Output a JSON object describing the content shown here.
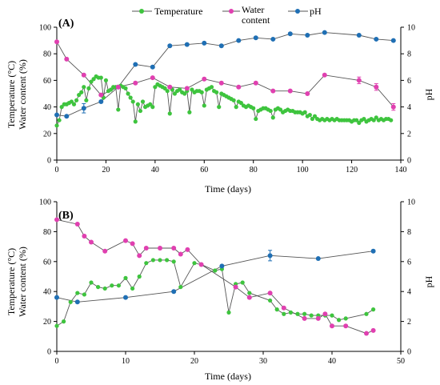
{
  "legend": {
    "temperature": "Temperature",
    "water_line1": "Water",
    "water_line2": "content",
    "ph": "pH"
  },
  "colors": {
    "temperature": "#3ec43e",
    "water": "#e040b0",
    "ph": "#1f6fb4",
    "connector": "#555555"
  },
  "chart_data": [
    {
      "type": "line",
      "panel_label": "(A)",
      "xlabel": "Time (days)",
      "ylabel_line1": "Temperature (°C)",
      "ylabel_line2": "Water content (%)",
      "y2label": "pH",
      "xlim": [
        0,
        140
      ],
      "ylim": [
        0,
        100
      ],
      "y2lim": [
        0,
        10
      ],
      "x_ticks": [
        "0",
        "20",
        "40",
        "60",
        "80",
        "100",
        "120",
        "140"
      ],
      "y_ticks": [
        "0",
        "20",
        "40",
        "60",
        "80",
        "100"
      ],
      "y2_ticks": [
        "0",
        "2",
        "4",
        "6",
        "8",
        "10"
      ],
      "series": [
        {
          "name": "Temperature",
          "axis": "left",
          "marker": "circle",
          "x": [
            0,
            1,
            2,
            3,
            4,
            5,
            6,
            7,
            8,
            9,
            10,
            11,
            12,
            13,
            14,
            15,
            16,
            17,
            18,
            19,
            20,
            21,
            22,
            23,
            24,
            25,
            26,
            27,
            28,
            29,
            30,
            31,
            32,
            33,
            34,
            35,
            36,
            37,
            38,
            39,
            40,
            41,
            42,
            43,
            44,
            45,
            46,
            47,
            48,
            49,
            50,
            51,
            52,
            53,
            54,
            55,
            56,
            57,
            58,
            59,
            60,
            61,
            62,
            63,
            64,
            65,
            66,
            67,
            68,
            69,
            70,
            71,
            72,
            73,
            74,
            75,
            76,
            77,
            78,
            79,
            80,
            81,
            82,
            83,
            84,
            85,
            86,
            87,
            88,
            89,
            90,
            91,
            92,
            93,
            94,
            95,
            96,
            97,
            98,
            99,
            100,
            101,
            102,
            103,
            104,
            105,
            106,
            107,
            108,
            109,
            110,
            111,
            112,
            113,
            114,
            115,
            116,
            117,
            118,
            119,
            120,
            121,
            122,
            123,
            124,
            125,
            126,
            127,
            128,
            129,
            130,
            131,
            132,
            133,
            134,
            135,
            136
          ],
          "y": [
            26,
            30,
            40,
            42,
            42,
            43,
            44,
            42,
            45,
            49,
            51,
            55,
            45,
            54,
            59,
            61,
            63,
            62,
            62,
            47,
            60,
            52,
            53,
            55,
            55,
            38,
            56,
            55,
            54,
            50,
            47,
            44,
            29,
            42,
            37,
            44,
            40,
            41,
            42,
            40,
            55,
            57,
            56,
            55,
            54,
            52,
            35,
            53,
            50,
            52,
            53,
            51,
            50,
            52,
            36,
            53,
            51,
            52,
            52,
            51,
            41,
            53,
            54,
            55,
            52,
            51,
            40,
            50,
            49,
            48,
            47,
            46,
            45,
            40,
            44,
            43,
            41,
            40,
            41,
            40,
            39,
            31,
            37,
            38,
            39,
            39,
            38,
            37,
            32,
            38,
            39,
            38,
            36,
            37,
            38,
            37,
            37,
            36,
            36,
            36,
            35,
            36,
            33,
            34,
            31,
            33,
            31,
            30,
            31,
            30,
            31,
            30,
            31,
            30,
            31,
            30,
            30,
            30,
            30,
            30,
            29,
            30,
            30,
            28,
            30,
            31,
            29,
            30,
            31,
            30,
            32,
            30,
            31,
            30,
            31,
            31,
            30
          ]
        },
        {
          "name": "Water content",
          "axis": "left",
          "marker": "circle",
          "x": [
            0,
            4,
            11,
            18,
            25,
            32,
            39,
            46,
            53,
            60,
            67,
            74,
            81,
            88,
            95,
            102,
            109,
            123,
            130,
            137
          ],
          "y": [
            89,
            76,
            64,
            49,
            55,
            58,
            62,
            55,
            54,
            61,
            58,
            55,
            58,
            52,
            52,
            50,
            64,
            60,
            55,
            40
          ],
          "error": [
            0,
            0,
            0,
            0,
            0,
            0,
            0,
            0,
            0,
            0,
            0,
            0,
            0,
            0,
            0,
            0,
            0,
            2.5,
            2.5,
            2.5
          ]
        },
        {
          "name": "pH",
          "axis": "right",
          "marker": "circle",
          "x": [
            0,
            4,
            11,
            18,
            25,
            32,
            39,
            46,
            53,
            60,
            67,
            74,
            81,
            88,
            95,
            102,
            109,
            123,
            130,
            137
          ],
          "y": [
            3.4,
            3.3,
            3.9,
            4.4,
            5.5,
            7.2,
            7.0,
            8.6,
            8.7,
            8.8,
            8.6,
            9.0,
            9.2,
            9.1,
            9.5,
            9.4,
            9.6,
            9.4,
            9.1,
            9.0
          ],
          "error": [
            0,
            0,
            0.35,
            0,
            0,
            0,
            0,
            0,
            0,
            0,
            0,
            0,
            0,
            0,
            0,
            0,
            0,
            0,
            0,
            0
          ]
        }
      ]
    },
    {
      "type": "line",
      "panel_label": "(B)",
      "xlabel": "Time (days)",
      "ylabel_line1": "Temperature (°C)",
      "ylabel_line2": "Water content (%)",
      "y2label": "pH",
      "xlim": [
        0,
        50
      ],
      "ylim": [
        0,
        100
      ],
      "y2lim": [
        0,
        10
      ],
      "x_ticks": [
        "0",
        "10",
        "20",
        "30",
        "40",
        "50"
      ],
      "y_ticks": [
        "0",
        "20",
        "40",
        "60",
        "80",
        "100"
      ],
      "y2_ticks": [
        "0",
        "2",
        "4",
        "6",
        "8",
        "10"
      ],
      "series": [
        {
          "name": "Temperature",
          "axis": "left",
          "marker": "circle",
          "x": [
            0,
            1,
            2,
            3,
            4,
            5,
            6,
            7,
            8,
            9,
            10,
            11,
            12,
            13,
            14,
            15,
            16,
            17,
            18,
            20,
            21,
            23,
            24,
            25,
            26,
            27,
            28,
            31,
            32,
            33,
            34,
            35,
            36,
            37,
            38,
            39,
            40,
            41,
            42,
            45,
            46
          ],
          "y": [
            17,
            20,
            33,
            39,
            38,
            46,
            43,
            42,
            44,
            44,
            49,
            42,
            50,
            59,
            61,
            61,
            61,
            60,
            43,
            59,
            58,
            54,
            55,
            26,
            45,
            46,
            39,
            34,
            28,
            25,
            26,
            25,
            25,
            24,
            24,
            24,
            24,
            21,
            22,
            25,
            28
          ]
        },
        {
          "name": "Water content",
          "axis": "left",
          "marker": "circle",
          "x": [
            0,
            3,
            4,
            5,
            7,
            10,
            11,
            12,
            13,
            15,
            17,
            18,
            19,
            21,
            26,
            28,
            31,
            33,
            36,
            38,
            39,
            40,
            42,
            45,
            46
          ],
          "y": [
            88,
            85,
            77,
            73,
            67,
            74,
            72,
            64,
            69,
            69,
            69,
            65,
            68,
            58,
            43,
            36,
            39,
            29,
            22,
            22,
            25,
            17,
            17,
            12,
            14
          ]
        },
        {
          "name": "pH",
          "axis": "right",
          "marker": "circle",
          "x": [
            0,
            3,
            10,
            17,
            24,
            31,
            38,
            46
          ],
          "y": [
            3.6,
            3.3,
            3.6,
            4.0,
            5.7,
            6.4,
            6.2,
            6.7
          ],
          "error": [
            0,
            0,
            0,
            0,
            0,
            0.35,
            0,
            0
          ]
        }
      ]
    }
  ]
}
